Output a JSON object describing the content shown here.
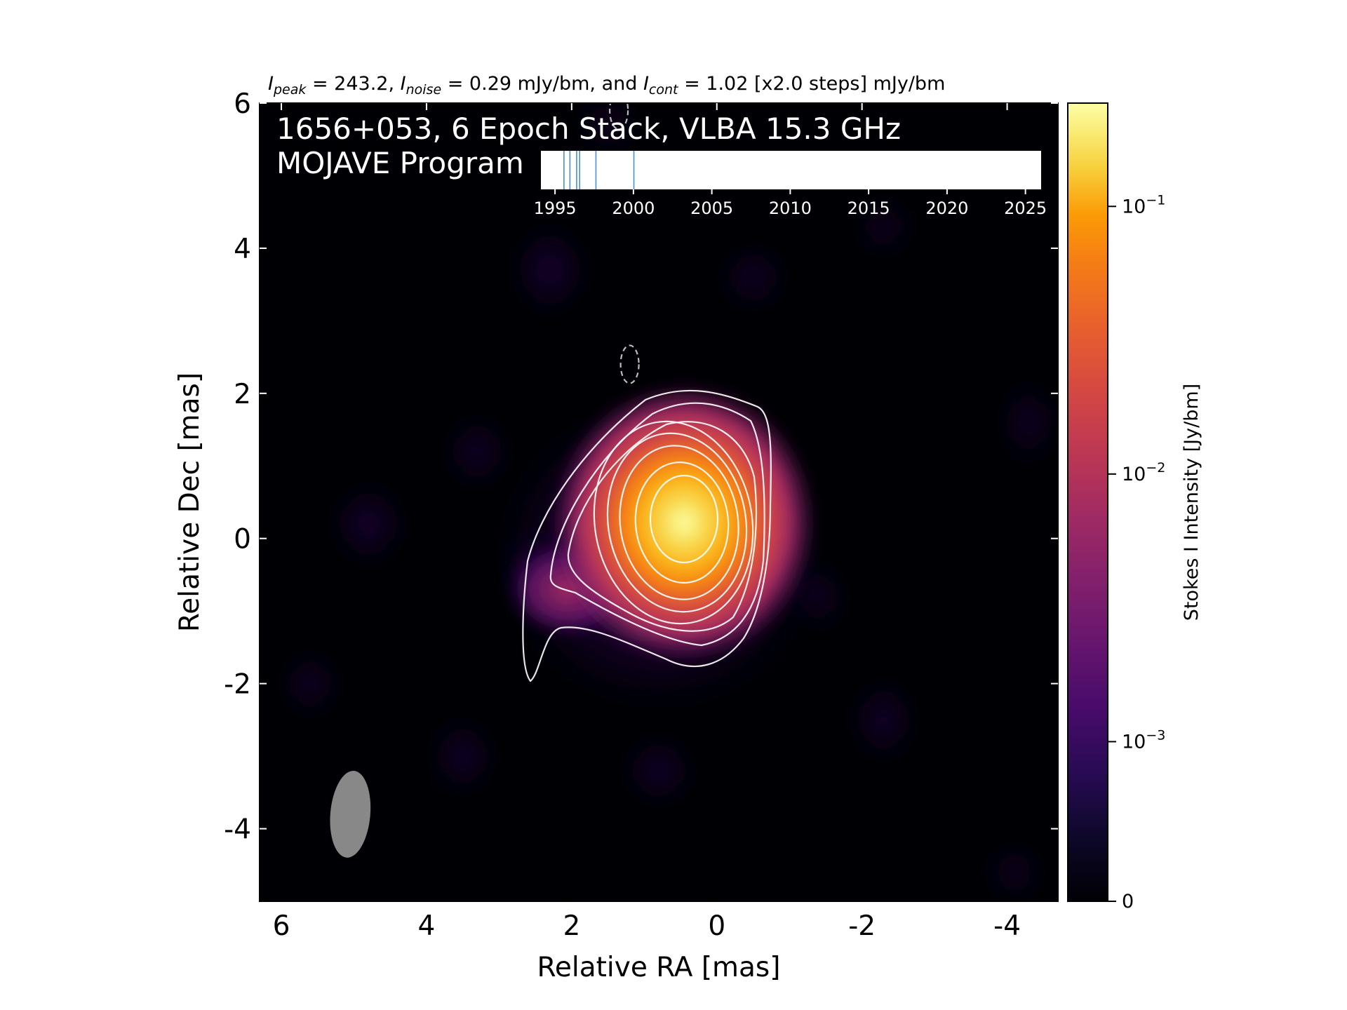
{
  "header": {
    "peak_value": "243.2",
    "noise_value": "0.29",
    "cont_value": "1.02",
    "steps": "x2.0",
    "unit": "mJy/bm"
  },
  "overlay": {
    "line1": "1656+053, 6 Epoch Stack, VLBA 15.3 GHz",
    "line2": "MOJAVE Program"
  },
  "colors": {
    "background": "#000004",
    "contour": "#ffffff",
    "beam": "#888888",
    "epoch_line": "#4a90c8"
  },
  "chart_data": [
    {
      "type": "heatmap",
      "colormap": "inferno",
      "xlabel": "Relative RA [mas]",
      "ylabel": "Relative Dec [mas]",
      "xlim": [
        6.3,
        -4.7
      ],
      "ylim": [
        -5.0,
        6.0
      ],
      "x_ticks": [
        6,
        4,
        2,
        0,
        -2,
        -4
      ],
      "x_tick_labels": [
        "6",
        "4",
        "2",
        "0",
        "-2",
        "-4"
      ],
      "y_ticks": [
        6,
        4,
        2,
        0,
        -2,
        -4
      ],
      "y_tick_labels": [
        "6",
        "4",
        "2",
        "0",
        "-2",
        "-4"
      ],
      "peak_position": [
        0.45,
        0.25
      ],
      "peak_mJy_per_beam": 243.2,
      "noise_mJy_per_beam": 0.29,
      "lowest_contour_mJy_per_beam": 1.02,
      "contour_step_factor": 2.0,
      "contour_levels_mJy_per_beam": [
        1.02,
        2.04,
        4.08,
        8.16,
        16.32,
        32.64,
        65.28,
        130.56
      ],
      "negative_contours": [
        {
          "x": 1.2,
          "y": 2.4
        },
        {
          "x": 1.35,
          "y": 5.9
        }
      ],
      "beam": {
        "x": 5.05,
        "y": -3.8,
        "major_mas": 1.2,
        "minor_mas": 0.55,
        "pa_deg": -5
      },
      "colorbar": {
        "label": "Stokes I Intensity [Jy/bm]",
        "scale": "log",
        "range": [
          0,
          0.2432
        ],
        "ticks": [
          {
            "value": 0,
            "label": "0"
          },
          {
            "value": 0.001,
            "label": "10",
            "exp": "−3"
          },
          {
            "value": 0.01,
            "label": "10",
            "exp": "−2"
          },
          {
            "value": 0.1,
            "label": "10",
            "exp": "−1"
          }
        ]
      }
    },
    {
      "type": "timeline",
      "x_ticks": [
        1995,
        2000,
        2005,
        2010,
        2015,
        2020,
        2025
      ],
      "x_tick_labels": [
        "1995",
        "2000",
        "2005",
        "2010",
        "2015",
        "2020",
        "2025"
      ],
      "xlim": [
        1994.1,
        2026.0
      ],
      "epochs": [
        1995.57,
        1995.95,
        1996.38,
        1996.57,
        1997.61,
        2000.03
      ]
    }
  ]
}
